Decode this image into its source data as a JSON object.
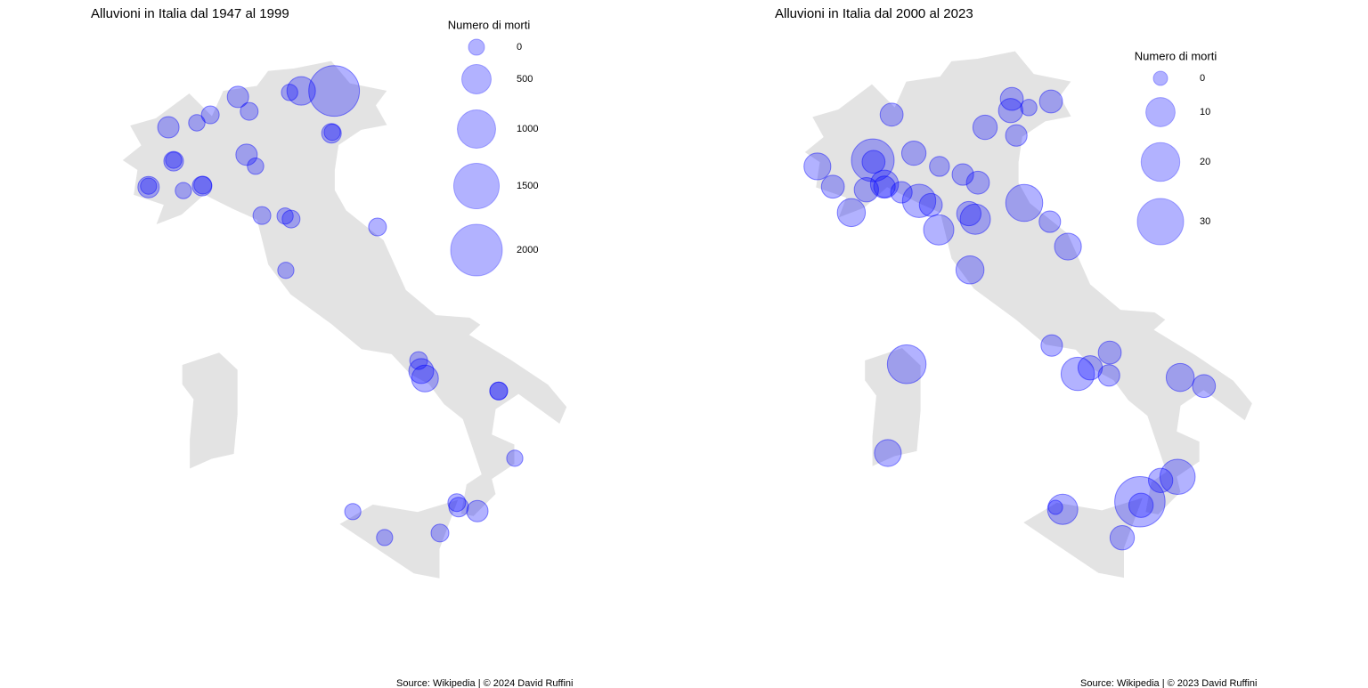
{
  "chart_data": [
    {
      "type": "bubble-map",
      "title": "Alluvioni in Italia dal 1947 al 1999",
      "legend_title": "Numero di morti",
      "sizes": [
        0,
        500,
        1000,
        1500,
        2000
      ],
      "color": "#0000ff",
      "lon": [
        12.27,
        11.39,
        11.08,
        9.7,
        10.0,
        8.96,
        8.6,
        7.84,
        12.2,
        12.22,
        9.93,
        10.17,
        7.98,
        7.98,
        7.31,
        7.31,
        8.24,
        8.74,
        8.76,
        10.34,
        10.96,
        11.12,
        13.43,
        10.98,
        14.53,
        14.6,
        14.7,
        16.67,
        16.67,
        17.1,
        12.77,
        15.55,
        15.6,
        16.1,
        13.62,
        15.1
      ],
      "lat": [
        46.49,
        46.49,
        46.46,
        46.37,
        46.08,
        46.01,
        45.85,
        45.76,
        45.64,
        45.66,
        45.21,
        44.98,
        45.08,
        45.1,
        44.56,
        44.58,
        44.49,
        44.58,
        44.6,
        43.99,
        43.98,
        43.92,
        43.76,
        42.89,
        41.08,
        40.87,
        40.72,
        40.47,
        40.47,
        39.12,
        38.05,
        38.23,
        38.14,
        38.06,
        37.53,
        37.62
      ],
      "values": [
        1917,
        460,
        10,
        166,
        50,
        50,
        10,
        166,
        105,
        5,
        166,
        10,
        105,
        5,
        166,
        5,
        5,
        105,
        50,
        50,
        5,
        50,
        50,
        5,
        50,
        300,
        380,
        50,
        50,
        5,
        5,
        50,
        105,
        166,
        5,
        50
      ],
      "source": "Source: Wikipedia | © 2024 David Ruffini"
    },
    {
      "type": "bubble-map",
      "title": "Alluvioni in Italia dal 2000 al 2023",
      "legend_title": "Numero di morti",
      "sizes": [
        0,
        10,
        20,
        30
      ],
      "color": "#0000ff",
      "lon": [
        12.11,
        13.15,
        12.56,
        12.08,
        8.92,
        11.4,
        12.23,
        8.42,
        8.44,
        9.51,
        6.95,
        10.19,
        10.81,
        11.21,
        7.36,
        8.25,
        8.73,
        8.73,
        9.18,
        9.65,
        9.96,
        12.44,
        7.85,
        10.97,
        11.14,
        13.12,
        10.17,
        13.6,
        11.0,
        13.17,
        9.32,
        14.71,
        13.86,
        14.19,
        14.69,
        16.58,
        17.21,
        8.82,
        16.51,
        16.06,
        13.46,
        13.27,
        15.51,
        15.54,
        15.04
      ],
      "lat": [
        46.15,
        46.1,
        45.98,
        45.92,
        45.84,
        45.59,
        45.43,
        44.94,
        44.91,
        45.08,
        44.82,
        44.82,
        44.66,
        44.5,
        44.42,
        44.36,
        44.47,
        44.42,
        44.31,
        44.14,
        44.06,
        44.1,
        43.91,
        43.89,
        43.78,
        43.73,
        43.57,
        43.24,
        42.78,
        41.29,
        40.92,
        41.15,
        40.73,
        40.85,
        40.7,
        40.66,
        40.49,
        39.17,
        38.7,
        38.63,
        38.06,
        38.1,
        38.21,
        38.14,
        37.5
      ],
      "values": [
        5,
        5,
        1,
        6,
        5,
        6,
        4,
        25,
        5,
        6,
        8,
        3,
        4,
        5,
        5,
        6,
        9,
        4,
        4,
        14,
        5,
        18,
        9,
        6,
        11,
        4,
        11,
        8,
        9,
        4,
        20,
        5,
        14,
        6,
        4,
        9,
        5,
        8,
        16,
        6,
        11,
        0,
        36,
        6,
        6
      ],
      "source": "Source: Wikipedia | © 2023 David Ruffini"
    }
  ]
}
